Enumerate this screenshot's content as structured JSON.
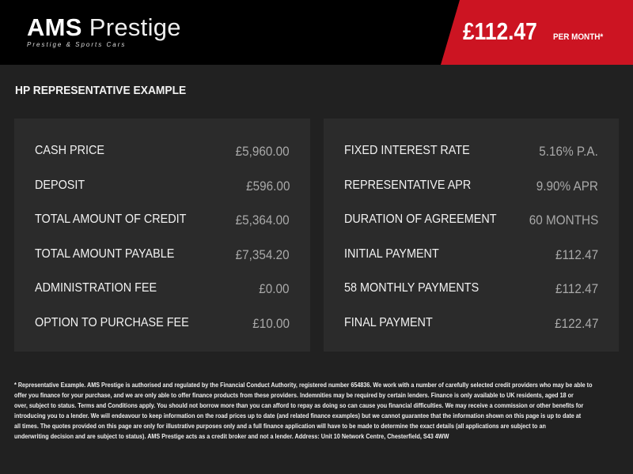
{
  "header": {
    "logo_bold": "AMS",
    "logo_rest": "Prestige",
    "logo_tagline": "Prestige & Sports Cars",
    "monthly_price": "£112.47",
    "per_month_label": "PER MONTH*",
    "accent_color": "#cc1422"
  },
  "section_title": "HP REPRESENTATIVE EXAMPLE",
  "left_panel": [
    {
      "label": "CASH PRICE",
      "value": "£5,960.00"
    },
    {
      "label": "DEPOSIT",
      "value": "£596.00"
    },
    {
      "label": "TOTAL AMOUNT OF CREDIT",
      "value": "£5,364.00"
    },
    {
      "label": "TOTAL AMOUNT PAYABLE",
      "value": "£7,354.20"
    },
    {
      "label": "ADMINISTRATION FEE",
      "value": "£0.00"
    },
    {
      "label": "OPTION TO PURCHASE FEE",
      "value": "£10.00"
    }
  ],
  "right_panel": [
    {
      "label": "FIXED INTEREST RATE",
      "value": "5.16% P.A."
    },
    {
      "label": "REPRESENTATIVE APR",
      "value": "9.90% APR"
    },
    {
      "label": "DURATION OF AGREEMENT",
      "value": "60 MONTHS"
    },
    {
      "label": "INITIAL PAYMENT",
      "value": "£112.47"
    },
    {
      "label": "58 MONTHLY PAYMENTS",
      "value": "£112.47"
    },
    {
      "label": "FINAL PAYMENT",
      "value": "£122.47"
    }
  ],
  "footer_lines": [
    "* Representative Example. AMS Prestige is authorised and regulated by the Financial Conduct Authority, registered number 654836. We work with a number of carefully selected credit providers who may be able to",
    "offer you finance for your purchase, and we are only able to offer finance products from these providers. Indemnities may be required by certain lenders. Finance is only available to UK residents, aged 18 or",
    "over, subject to status. Terms and Conditions apply. You should not borrow more than you can afford to repay as doing so can cause you financial difficulties. We may receive a commission or other benefits for",
    "introducing you to a lender. We will endeavour to keep information on the road prices up to date (and related finance examples) but we cannot guarantee that the information shown on this page is up to date at",
    "all times. The quotes provided on this page are only for illustrative purposes only and a full finance application will have to be made to determine the exact details (all applications are subject to an",
    "underwriting decision and are subject to status). AMS Prestige acts as a credit broker and not a lender. Address: Unit 10 Network Centre, Chesterfield, S43 4WW"
  ]
}
